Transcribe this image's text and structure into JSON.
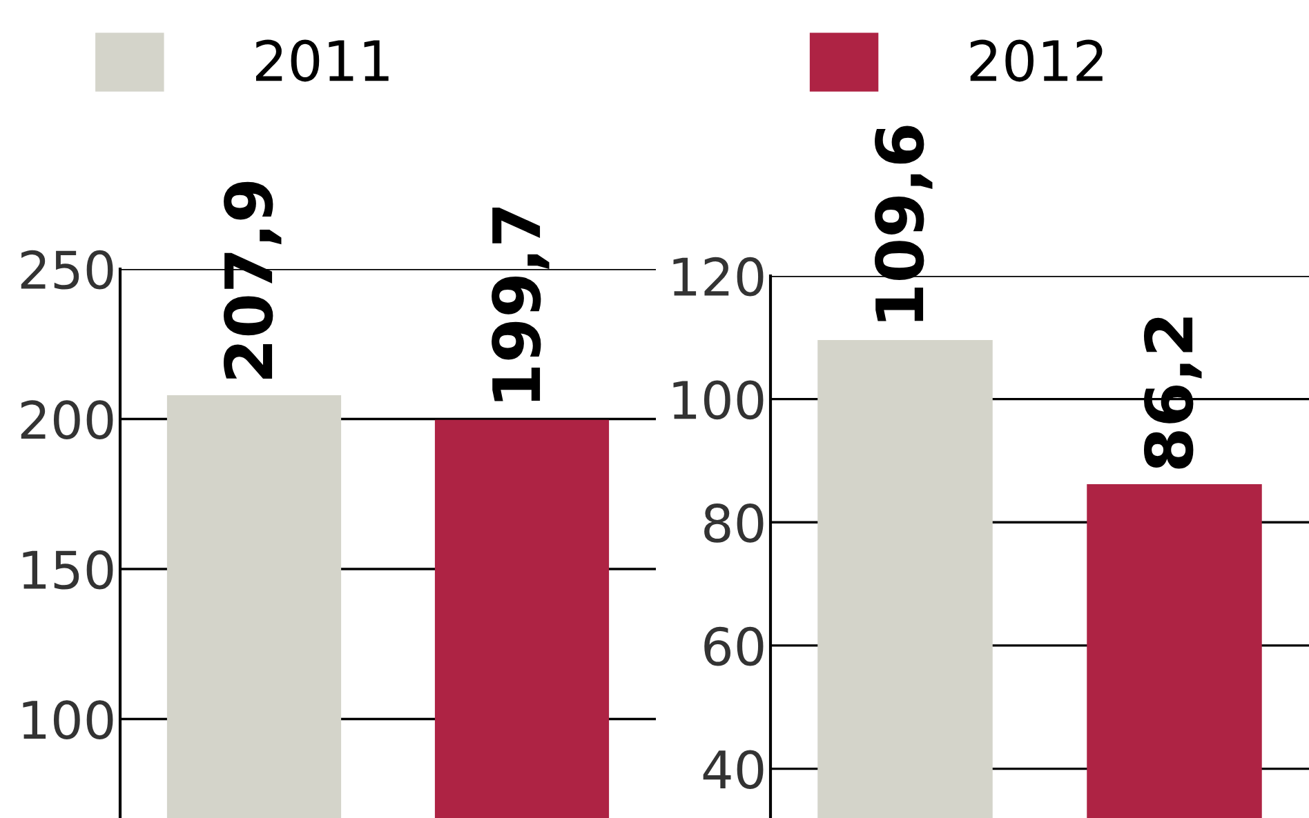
{
  "chart_data": [
    {
      "type": "bar",
      "categories": [
        null
      ],
      "legend": "top",
      "data_labels": true,
      "grid": "y",
      "ylim": [
        67,
        250
      ],
      "yticks": [
        100,
        150,
        200,
        250
      ],
      "series": [
        {
          "name": "2011",
          "color": "#d4d4ca",
          "values": [
            207.9
          ],
          "value_labels": [
            "207,9"
          ]
        },
        {
          "name": "2012",
          "color": "#ae2344",
          "values": [
            199.7
          ],
          "value_labels": [
            "199,7"
          ]
        }
      ]
    },
    {
      "type": "bar",
      "categories": [
        null
      ],
      "data_labels": true,
      "grid": "y",
      "ylim": [
        32,
        120
      ],
      "yticks": [
        40,
        60,
        80,
        100,
        120
      ],
      "series": [
        {
          "color": "#d4d4ca",
          "values": [
            109.6
          ],
          "value_labels": [
            "109,6"
          ]
        },
        {
          "color": "#ae2344",
          "values": [
            86.2
          ],
          "value_labels": [
            "86,2"
          ]
        }
      ]
    }
  ]
}
